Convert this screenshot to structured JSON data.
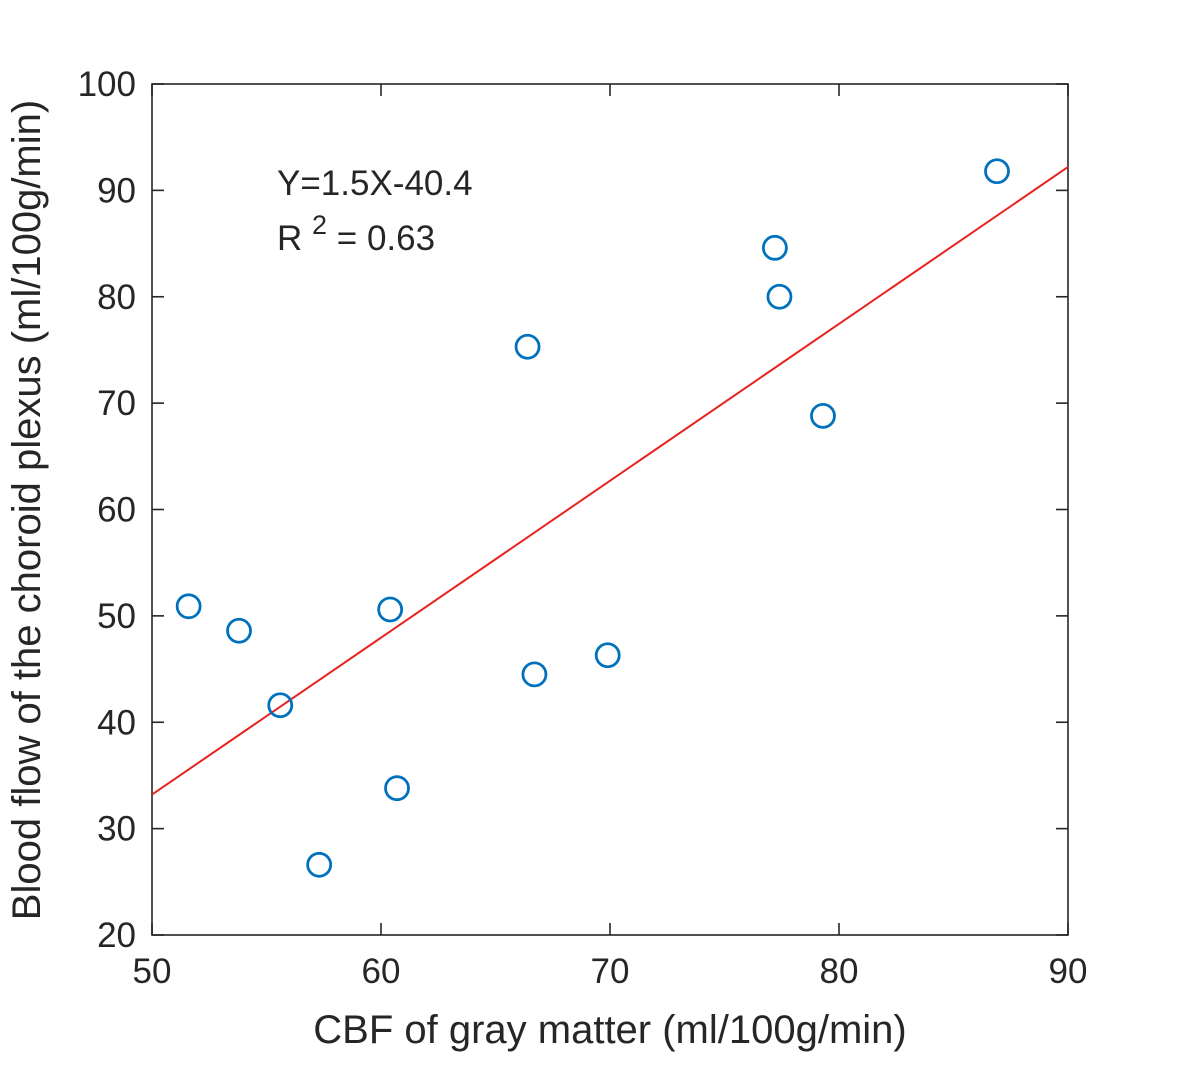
{
  "chart_data": {
    "type": "scatter",
    "title": "",
    "xlabel": "CBF of gray matter (ml/100g/min)",
    "ylabel": "Blood flow of the choroid plexus (ml/100g/min)",
    "xlim": [
      50,
      90
    ],
    "ylim": [
      20,
      100
    ],
    "x_ticks": [
      50,
      60,
      70,
      80,
      90
    ],
    "y_ticks": [
      20,
      30,
      40,
      50,
      60,
      70,
      80,
      90,
      100
    ],
    "grid": false,
    "legend": "none",
    "points": [
      {
        "x": 51.6,
        "y": 50.9
      },
      {
        "x": 53.8,
        "y": 48.6
      },
      {
        "x": 55.6,
        "y": 41.6
      },
      {
        "x": 57.3,
        "y": 26.6
      },
      {
        "x": 60.4,
        "y": 50.6
      },
      {
        "x": 60.7,
        "y": 33.8
      },
      {
        "x": 66.4,
        "y": 75.3
      },
      {
        "x": 66.7,
        "y": 44.5
      },
      {
        "x": 69.9,
        "y": 46.3
      },
      {
        "x": 77.2,
        "y": 84.6
      },
      {
        "x": 77.4,
        "y": 80.0
      },
      {
        "x": 79.3,
        "y": 68.8
      },
      {
        "x": 86.9,
        "y": 91.8
      }
    ],
    "regression_line": {
      "x1": 50,
      "y1": 33.2,
      "x2": 90,
      "y2": 92.2,
      "color": "#e8231f"
    },
    "annotation": {
      "line1": "Y=1.5X-40.4",
      "line2_base": "R",
      "line2_sup": "2",
      "line2_rest": " = 0.63"
    },
    "marker_color": "#0072BD",
    "axis_color": "#262626",
    "background": "#ffffff"
  }
}
